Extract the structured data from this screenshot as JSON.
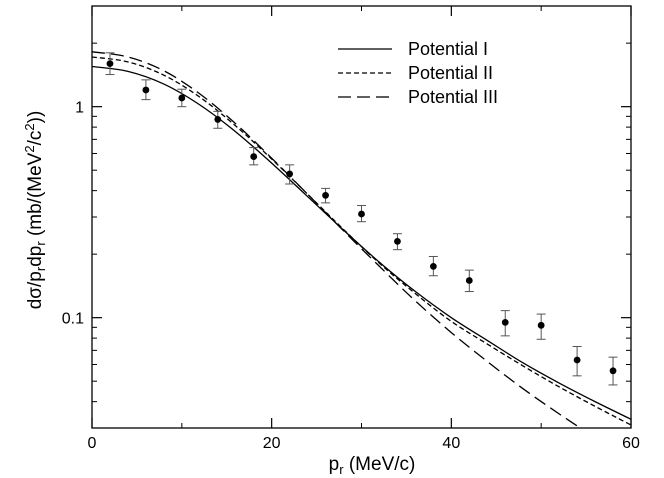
{
  "chart_data": {
    "type": "line",
    "title": "",
    "xlabel": "",
    "ylabel": "",
    "xlabel_parts": {
      "main": "p",
      "sub": "r",
      "rest": " (MeV/c)"
    },
    "ylabel_parts": {
      "a": "dσ/p",
      "s1": "r",
      "b": "dp",
      "s2": "r",
      "c": " (mb/(MeV",
      "sup": "2",
      "d": "/c",
      "sup2": "2",
      "e": "))"
    },
    "xlim": [
      0,
      60
    ],
    "ylim": [
      0.03,
      3.0
    ],
    "yscale": "log",
    "x_ticks": [
      0,
      20,
      40,
      60
    ],
    "x_tick_labels": [
      "0",
      "20",
      "40",
      "60"
    ],
    "y_ticks": [
      0.1,
      1
    ],
    "y_tick_labels": [
      "0.1",
      "1"
    ],
    "grid": false,
    "legend_position": "top-right",
    "series": [
      {
        "name": "Potential I",
        "kind": "line",
        "dash": "solid",
        "x": [
          0,
          4,
          8,
          12,
          16,
          20,
          24,
          28,
          32,
          36,
          40,
          44,
          48,
          52,
          56,
          60
        ],
        "y": [
          1.55,
          1.47,
          1.28,
          1.02,
          0.76,
          0.54,
          0.375,
          0.26,
          0.183,
          0.133,
          0.1,
          0.078,
          0.061,
          0.049,
          0.04,
          0.033
        ]
      },
      {
        "name": "Potential II",
        "kind": "line",
        "dash": "short",
        "x": [
          0,
          4,
          8,
          12,
          16,
          20,
          24,
          28,
          32,
          36,
          40,
          44,
          48,
          52,
          56,
          60
        ],
        "y": [
          1.72,
          1.63,
          1.41,
          1.11,
          0.81,
          0.565,
          0.385,
          0.262,
          0.181,
          0.13,
          0.096,
          0.075,
          0.059,
          0.047,
          0.038,
          0.031
        ]
      },
      {
        "name": "Potential III",
        "kind": "line",
        "dash": "long",
        "x": [
          0,
          4,
          8,
          12,
          16,
          20,
          24,
          28,
          32,
          36,
          40,
          44,
          48,
          52,
          56,
          58
        ],
        "y": [
          1.82,
          1.72,
          1.48,
          1.15,
          0.83,
          0.57,
          0.385,
          0.258,
          0.175,
          0.12,
          0.085,
          0.062,
          0.046,
          0.035,
          0.027,
          0.024
        ]
      },
      {
        "name": "",
        "kind": "points",
        "x": [
          2,
          6,
          10,
          14,
          18,
          22,
          26,
          30,
          34,
          38,
          42,
          46,
          50,
          54,
          58
        ],
        "y": [
          1.6,
          1.2,
          1.1,
          0.87,
          0.58,
          0.48,
          0.38,
          0.31,
          0.23,
          0.175,
          0.15,
          0.095,
          0.092,
          0.063,
          0.056
        ],
        "err_low": [
          1.42,
          1.08,
          1.0,
          0.79,
          0.53,
          0.43,
          0.35,
          0.285,
          0.21,
          0.158,
          0.133,
          0.082,
          0.079,
          0.053,
          0.048
        ],
        "err_high": [
          1.8,
          1.34,
          1.21,
          0.95,
          0.64,
          0.53,
          0.41,
          0.34,
          0.25,
          0.195,
          0.168,
          0.108,
          0.104,
          0.073,
          0.065
        ]
      }
    ]
  }
}
